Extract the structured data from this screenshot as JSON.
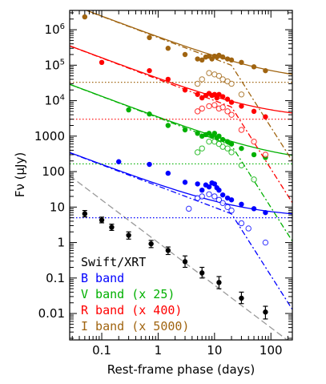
{
  "chart_data": {
    "type": "scatter",
    "title": "",
    "xlabel": "Rest-frame phase (days)",
    "ylabel": "Fν (μJy)",
    "xscale": "log",
    "yscale": "log",
    "xlim": [
      0.027,
      240
    ],
    "ylim": [
      0.0018,
      3500000
    ],
    "x_ticks": [
      {
        "value": 0.1,
        "label": "0.1"
      },
      {
        "value": 1,
        "label": "1"
      },
      {
        "value": 10,
        "label": "10"
      },
      {
        "value": 100,
        "label": "100"
      }
    ],
    "y_ticks": [
      {
        "value": 0.01,
        "label": "0.01"
      },
      {
        "value": 0.1,
        "label": "0.1"
      },
      {
        "value": 1,
        "label": "1"
      },
      {
        "value": 10,
        "label": "10"
      },
      {
        "value": 100,
        "label": "100"
      },
      {
        "value": 1000,
        "label": "1000"
      },
      {
        "value": 10000,
        "label": "10",
        "sup": "4"
      },
      {
        "value": 100000,
        "label": "10",
        "sup": "5"
      },
      {
        "value": 1000000,
        "label": "10",
        "sup": "6"
      }
    ],
    "legend_position": "bottom-left",
    "legend": [
      {
        "label": "Swift/XRT",
        "color": "#000000"
      },
      {
        "label": "B band",
        "color": "#0000ff"
      },
      {
        "label": "V band (x 25)",
        "color": "#00b000"
      },
      {
        "label": "R band (x 400)",
        "color": "#ff0000"
      },
      {
        "label": "I band (x 5000)",
        "color": "#a06410"
      }
    ],
    "series": [
      {
        "name": "Swift/XRT",
        "color": "#000000",
        "marker": "filled-errorbar",
        "points": [
          {
            "x": 0.05,
            "y": 6.5,
            "lo": 5.3,
            "hi": 8.0
          },
          {
            "x": 0.1,
            "y": 4.3,
            "lo": 3.6,
            "hi": 5.2
          },
          {
            "x": 0.15,
            "y": 2.7,
            "lo": 2.2,
            "hi": 3.3
          },
          {
            "x": 0.3,
            "y": 1.6,
            "lo": 1.25,
            "hi": 2.0
          },
          {
            "x": 0.75,
            "y": 0.92,
            "lo": 0.72,
            "hi": 1.15
          },
          {
            "x": 1.5,
            "y": 0.6,
            "lo": 0.46,
            "hi": 0.75
          },
          {
            "x": 3.0,
            "y": 0.29,
            "lo": 0.2,
            "hi": 0.42
          },
          {
            "x": 6.0,
            "y": 0.14,
            "lo": 0.1,
            "hi": 0.2
          },
          {
            "x": 12.0,
            "y": 0.075,
            "lo": 0.05,
            "hi": 0.11
          },
          {
            "x": 30.0,
            "y": 0.027,
            "lo": 0.019,
            "hi": 0.04
          },
          {
            "x": 80.0,
            "y": 0.011,
            "lo": 0.007,
            "hi": 0.016
          }
        ]
      },
      {
        "name": "B band",
        "color": "#0000ff",
        "filled": [
          [
            0.2,
            190
          ],
          [
            0.7,
            160
          ],
          [
            1.5,
            90
          ],
          [
            3.0,
            50
          ],
          [
            5.0,
            45
          ],
          [
            6.0,
            30
          ],
          [
            7.0,
            42
          ],
          [
            8.0,
            37
          ],
          [
            9.0,
            48
          ],
          [
            10.0,
            45
          ],
          [
            11.0,
            35
          ],
          [
            12.0,
            30
          ],
          [
            14.0,
            22
          ],
          [
            17.0,
            18
          ],
          [
            20.0,
            16
          ],
          [
            30.0,
            12
          ],
          [
            50.0,
            9
          ],
          [
            80.0,
            7
          ]
        ],
        "open": [
          [
            3.5,
            9
          ],
          [
            5.0,
            18
          ],
          [
            6.0,
            20
          ],
          [
            8.0,
            23
          ],
          [
            10.0,
            20
          ],
          [
            12.0,
            16
          ],
          [
            14.0,
            13
          ],
          [
            17.0,
            10
          ],
          [
            20.0,
            8
          ],
          [
            30.0,
            3.5
          ],
          [
            40.0,
            2.5
          ],
          [
            80.0,
            1
          ]
        ]
      },
      {
        "name": "V band (x 25)",
        "color": "#00b000",
        "filled": [
          [
            0.3,
            5500
          ],
          [
            0.7,
            4200
          ],
          [
            1.5,
            2000
          ],
          [
            3.0,
            1500
          ],
          [
            5.0,
            1200
          ],
          [
            6.0,
            1000
          ],
          [
            7.0,
            1100
          ],
          [
            8.0,
            1200
          ],
          [
            9.0,
            1000
          ],
          [
            10.0,
            1200
          ],
          [
            11.0,
            900
          ],
          [
            12.0,
            1000
          ],
          [
            14.0,
            800
          ],
          [
            17.0,
            700
          ],
          [
            20.0,
            600
          ],
          [
            30.0,
            450
          ],
          [
            50.0,
            300
          ],
          [
            80.0,
            250
          ]
        ],
        "open": [
          [
            5.0,
            350
          ],
          [
            6.0,
            450
          ],
          [
            8.0,
            700
          ],
          [
            10.0,
            700
          ],
          [
            12.0,
            600
          ],
          [
            14.0,
            500
          ],
          [
            17.0,
            450
          ],
          [
            20.0,
            350
          ],
          [
            30.0,
            150
          ],
          [
            50.0,
            60
          ]
        ]
      },
      {
        "name": "R band (x 400)",
        "color": "#ff0000",
        "filled": [
          [
            0.1,
            120000
          ],
          [
            0.7,
            70000
          ],
          [
            1.5,
            40000
          ],
          [
            3.0,
            20000
          ],
          [
            5.0,
            15000
          ],
          [
            6.0,
            12000
          ],
          [
            7.0,
            14000
          ],
          [
            8.0,
            16000
          ],
          [
            9.0,
            14000
          ],
          [
            10.0,
            15000
          ],
          [
            11.0,
            12000
          ],
          [
            12.0,
            15000
          ],
          [
            14.0,
            13000
          ],
          [
            17.0,
            11000
          ],
          [
            20.0,
            9000
          ],
          [
            30.0,
            7000
          ],
          [
            50.0,
            5000
          ],
          [
            80.0,
            3500
          ]
        ],
        "open": [
          [
            5.0,
            5000
          ],
          [
            6.0,
            6000
          ],
          [
            8.0,
            7000
          ],
          [
            10.0,
            7500
          ],
          [
            12.0,
            6000
          ],
          [
            14.0,
            6500
          ],
          [
            17.0,
            5000
          ],
          [
            20.0,
            4000
          ],
          [
            30.0,
            1500
          ],
          [
            50.0,
            700
          ],
          [
            80.0,
            300
          ]
        ]
      },
      {
        "name": "I band (x 5000)",
        "color": "#a06410",
        "filled": [
          [
            0.05,
            2300000
          ],
          [
            0.7,
            600000
          ],
          [
            1.5,
            300000
          ],
          [
            3.0,
            200000
          ],
          [
            5.0,
            150000
          ],
          [
            6.0,
            140000
          ],
          [
            7.0,
            170000
          ],
          [
            8.0,
            180000
          ],
          [
            9.0,
            150000
          ],
          [
            10.0,
            180000
          ],
          [
            11.0,
            170000
          ],
          [
            12.0,
            190000
          ],
          [
            14.0,
            170000
          ],
          [
            17.0,
            150000
          ],
          [
            20.0,
            140000
          ],
          [
            30.0,
            120000
          ],
          [
            50.0,
            90000
          ],
          [
            80.0,
            70000
          ]
        ],
        "open": [
          [
            5.0,
            30000
          ],
          [
            6.0,
            40000
          ],
          [
            8.0,
            60000
          ],
          [
            10.0,
            55000
          ],
          [
            12.0,
            50000
          ],
          [
            14.0,
            40000
          ],
          [
            17.0,
            35000
          ],
          [
            20.0,
            30000
          ],
          [
            30.0,
            15000
          ]
        ]
      }
    ],
    "models": [
      {
        "name": "Swift/XRT",
        "color": "#999999",
        "style": "dashed",
        "kind": "pl",
        "amp": 1.0,
        "idx": -1.2
      },
      {
        "name": "B band",
        "color": "#0000ff",
        "style": "solid",
        "kind": "pl_floor",
        "amp": 39,
        "idx": -0.6,
        "floor": 5
      },
      {
        "name": "B band",
        "color": "#0000ff",
        "style": "dashdot",
        "kind": "pl_break",
        "amp": 39,
        "idx": -0.6,
        "tb": 20,
        "idx2": -2.5
      },
      {
        "name": "V band (x 25)",
        "color": "#00b000",
        "style": "solid",
        "kind": "pl_floor",
        "amp": 3300,
        "idx": -0.6,
        "floor": 165
      },
      {
        "name": "V band (x 25)",
        "color": "#00b000",
        "style": "dashdot",
        "kind": "pl_break",
        "amp": 3300,
        "idx": -0.6,
        "tb": 20,
        "idx2": -2.5
      },
      {
        "name": "R band (x 400)",
        "color": "#ff0000",
        "style": "solid",
        "kind": "pl_floor",
        "amp": 40000,
        "idx": -0.6,
        "floor": 3000
      },
      {
        "name": "R band (x 400)",
        "color": "#ff0000",
        "style": "dashdot",
        "kind": "pl_break",
        "amp": 40000,
        "idx": -0.6,
        "tb": 20,
        "idx2": -2.5
      },
      {
        "name": "I band (x 5000)",
        "color": "#a06410",
        "style": "solid",
        "kind": "pl_floor",
        "amp": 600000,
        "idx": -0.6,
        "floor": 33000
      },
      {
        "name": "I band (x 5000)",
        "color": "#a06410",
        "style": "dashdot",
        "kind": "pl_break",
        "amp": 600000,
        "idx": -0.6,
        "tb": 20,
        "idx2": -2.5
      }
    ],
    "hosts": [
      {
        "name": "B band",
        "color": "#0000ff",
        "y": 5
      },
      {
        "name": "V band (x 25)",
        "color": "#00b000",
        "y": 165
      },
      {
        "name": "R band (x 400)",
        "color": "#ff0000",
        "y": 3000
      },
      {
        "name": "I band (x 5000)",
        "color": "#a06410",
        "y": 33000
      }
    ]
  }
}
